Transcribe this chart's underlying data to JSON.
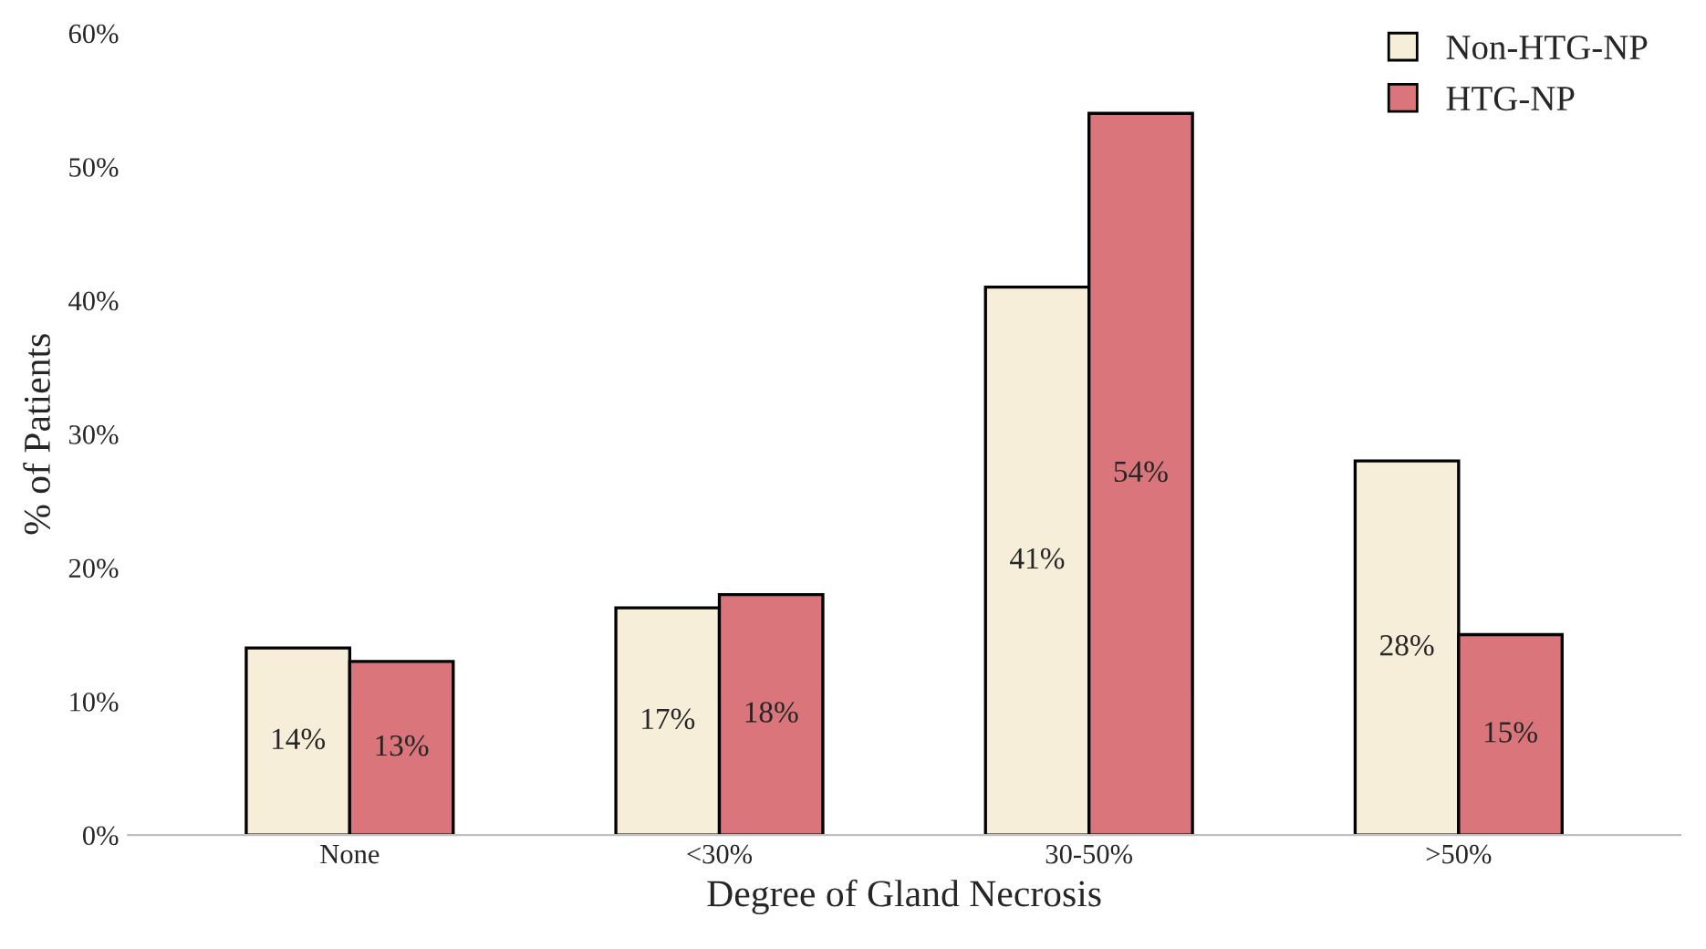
{
  "chart_data": {
    "type": "bar",
    "xlabel": "Degree of Gland Necrosis",
    "ylabel": "% of Patients",
    "categories": [
      "None",
      "<30%",
      "30-50%",
      ">50%"
    ],
    "series": [
      {
        "name": "Non-HTG-NP",
        "color": "#f6eed8",
        "values": [
          14,
          17,
          41,
          28
        ],
        "value_labels": [
          "14%",
          "17%",
          "41%",
          "28%"
        ]
      },
      {
        "name": "HTG-NP",
        "color": "#d9757b",
        "values": [
          13,
          18,
          54,
          15
        ],
        "value_labels": [
          "13%",
          "18%",
          "54%",
          "15%"
        ]
      }
    ],
    "ylim": [
      0,
      60
    ],
    "yticks": [
      {
        "value": 0,
        "label": "0%"
      },
      {
        "value": 10,
        "label": "10%"
      },
      {
        "value": 20,
        "label": "20%"
      },
      {
        "value": 30,
        "label": "30%"
      },
      {
        "value": 40,
        "label": "40%"
      },
      {
        "value": 50,
        "label": "50%"
      },
      {
        "value": 60,
        "label": "60%"
      }
    ],
    "grid": false,
    "legend": "top right"
  }
}
